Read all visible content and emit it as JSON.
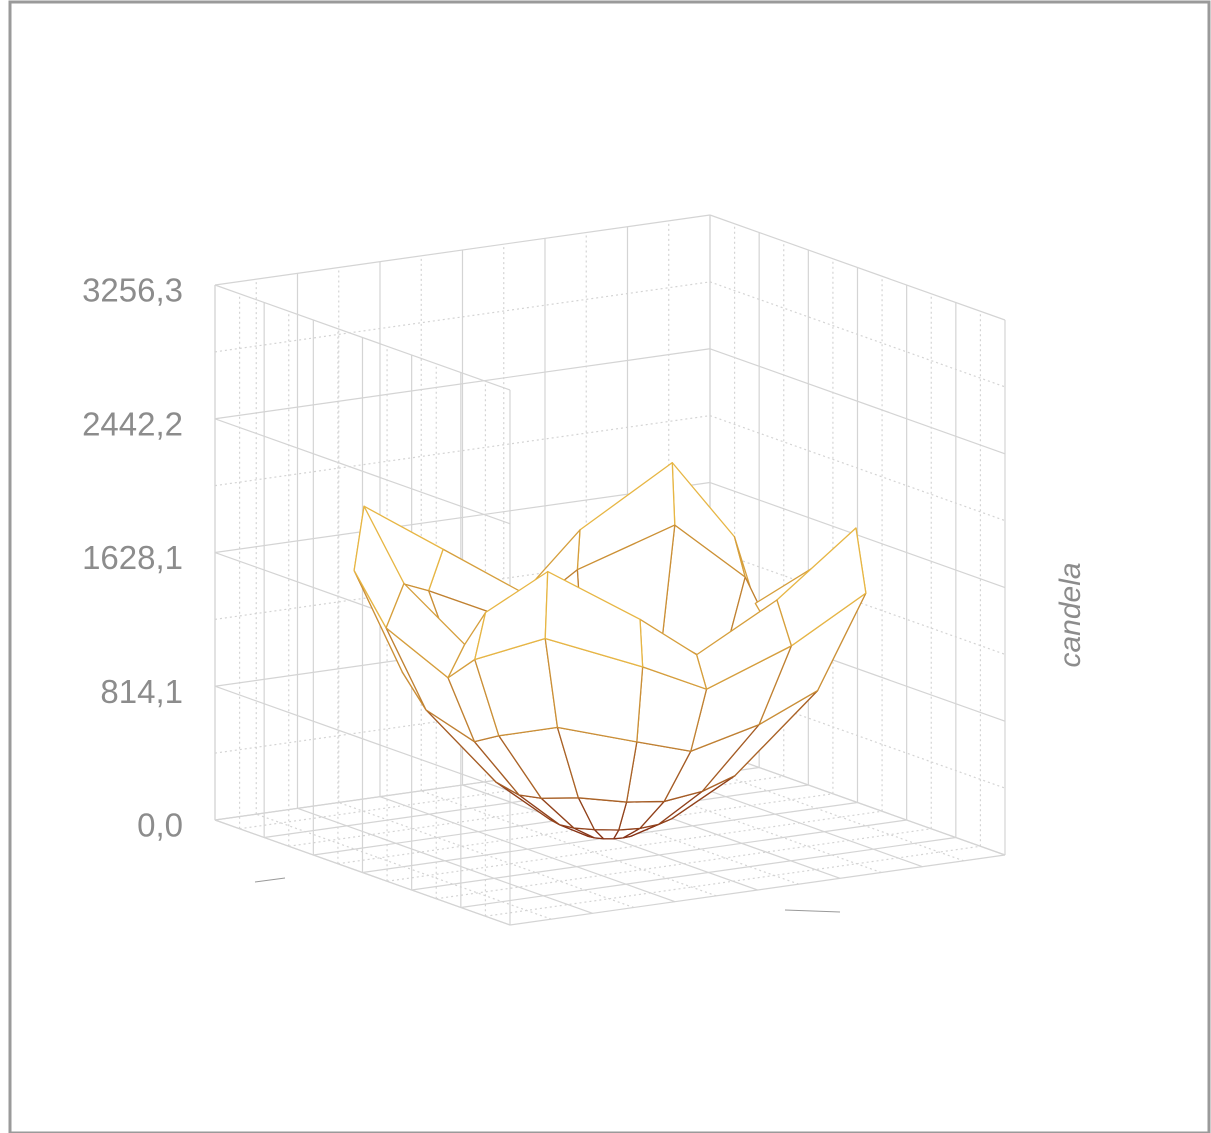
{
  "chart_data": {
    "type": "surface",
    "z_label": "candela",
    "zlim": [
      0,
      3256.3
    ],
    "zticks": [
      {
        "value": 0,
        "label": "0,0"
      },
      {
        "value": 814.1,
        "label": "814,1"
      },
      {
        "value": 1628.1,
        "label": "1628,1"
      },
      {
        "value": 2442.2,
        "label": "2442,2"
      },
      {
        "value": 3256.3,
        "label": "3256,3"
      }
    ],
    "gamma": [
      0,
      15,
      30,
      45,
      60,
      75,
      90
    ],
    "c_planes": [
      0,
      22.5,
      45,
      67.5,
      90,
      112.5,
      135,
      157.5,
      180,
      202.5,
      225,
      247.5,
      270,
      292.5,
      315,
      337.5
    ],
    "values": [
      [
        700,
        700,
        700,
        700,
        700,
        700,
        700,
        700,
        700,
        700,
        700,
        700,
        700,
        700,
        700,
        700
      ],
      [
        750,
        760,
        780,
        760,
        750,
        760,
        780,
        760,
        750,
        760,
        780,
        760,
        750,
        760,
        780,
        760
      ],
      [
        900,
        930,
        980,
        930,
        900,
        930,
        980,
        930,
        900,
        930,
        980,
        930,
        900,
        930,
        980,
        930
      ],
      [
        1150,
        1250,
        1400,
        1250,
        1150,
        1250,
        1400,
        1250,
        1150,
        1250,
        1400,
        1250,
        1150,
        1250,
        1400,
        1250
      ],
      [
        1400,
        1650,
        1900,
        1650,
        1400,
        1650,
        1900,
        1650,
        1400,
        1650,
        1900,
        1650,
        1400,
        1650,
        1900,
        1650
      ],
      [
        1500,
        1800,
        2100,
        1800,
        1500,
        1800,
        2100,
        1800,
        1500,
        1800,
        2100,
        1800,
        1500,
        1800,
        2100,
        1800
      ],
      [
        1300,
        1600,
        1950,
        1600,
        1300,
        1600,
        1950,
        1600,
        1300,
        1600,
        1950,
        1600,
        1300,
        1600,
        1950,
        1600
      ]
    ]
  }
}
